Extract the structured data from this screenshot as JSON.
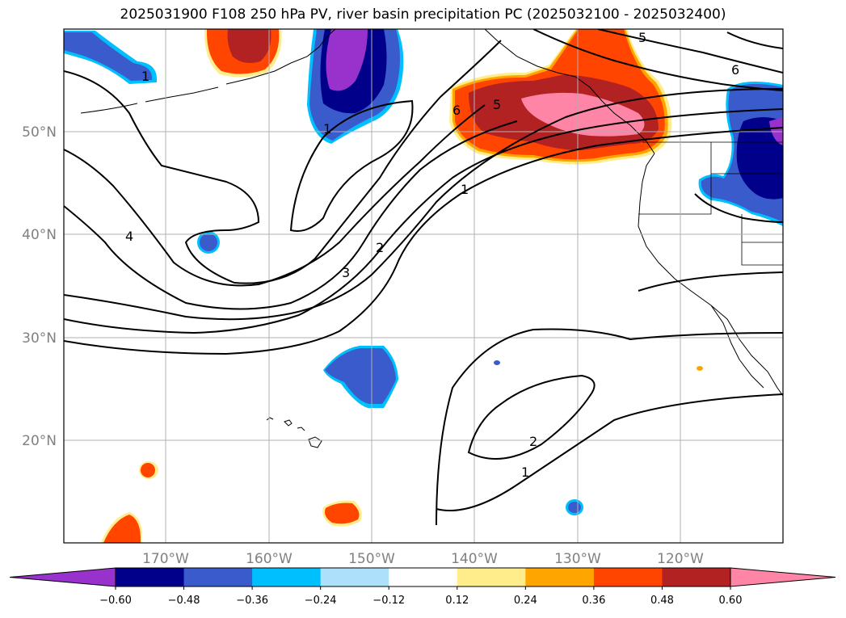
{
  "title": "2025031900 F108 250 hPa PV, river basin precipitation PC (2025032100 - 2025032400)",
  "map": {
    "lat_labels": [
      "50°N",
      "40°N",
      "30°N",
      "20°N"
    ],
    "lon_labels": [
      "170°W",
      "160°W",
      "150°W",
      "140°W",
      "130°W",
      "120°W"
    ],
    "grid": true
  },
  "contour_labels": [
    "1",
    "1",
    "1",
    "1",
    "2",
    "2",
    "3",
    "4",
    "5",
    "5",
    "6",
    "6"
  ],
  "colorbar": {
    "tick_labels": [
      "−0.60",
      "−0.48",
      "−0.36",
      "−0.24",
      "−0.12",
      "0.12",
      "0.24",
      "0.36",
      "0.48",
      "0.60"
    ],
    "colors": [
      "#9932CC",
      "#00008B",
      "#3A5BCC",
      "#00BFFF",
      "#ADE0FA",
      "#FFFFFF",
      "#FFEC8B",
      "#FFA500",
      "#FF4500",
      "#B22222",
      "#FF85A6"
    ],
    "extend": "both"
  }
}
